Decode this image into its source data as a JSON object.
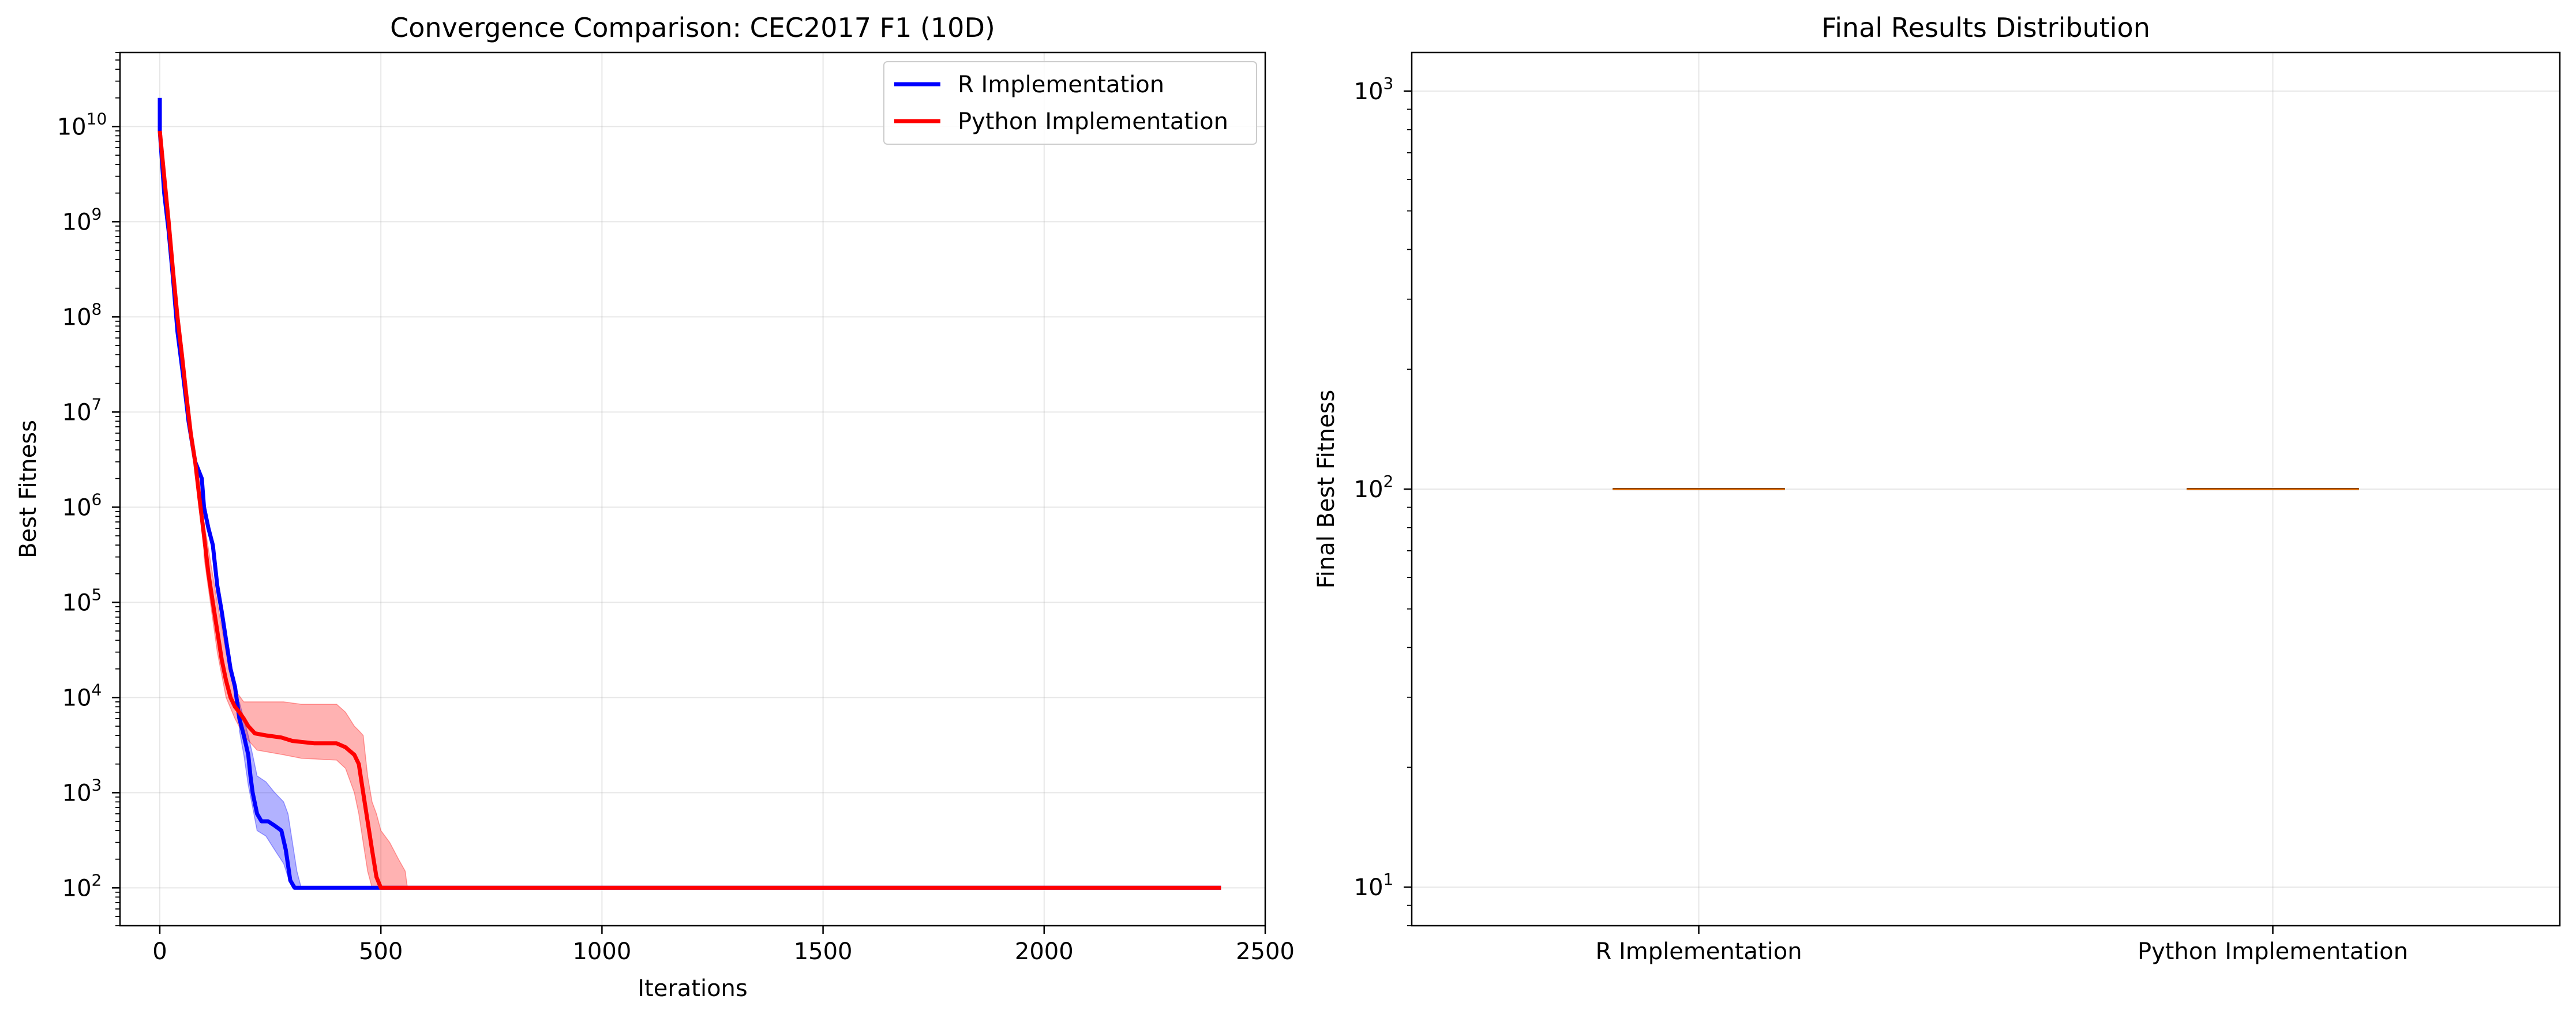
{
  "chart_data": [
    {
      "type": "line",
      "title": "Convergence Comparison: CEC2017 F1 (10D)",
      "xlabel": "Iterations",
      "ylabel": "Best Fitness",
      "xlim": [
        -90,
        2500
      ],
      "xticks": [
        0,
        500,
        1000,
        1500,
        2000,
        2500
      ],
      "ylim": [
        40,
        60000000000
      ],
      "yscale": "log",
      "yticks": [
        {
          "base": "10",
          "exp": "2"
        },
        {
          "base": "10",
          "exp": "3"
        },
        {
          "base": "10",
          "exp": "4"
        },
        {
          "base": "10",
          "exp": "5"
        },
        {
          "base": "10",
          "exp": "6"
        },
        {
          "base": "10",
          "exp": "7"
        },
        {
          "base": "10",
          "exp": "8"
        },
        {
          "base": "10",
          "exp": "9"
        },
        {
          "base": "10",
          "exp": "10"
        }
      ],
      "grid": true,
      "legend_position": "top-right",
      "series": [
        {
          "name": "R Implementation",
          "color": "#0000ff",
          "band_color": "#0000ff",
          "points": [
            [
              0,
              20000000000
            ],
            [
              0,
              9000000000
            ],
            [
              10,
              2000000000
            ],
            [
              20,
              800000000
            ],
            [
              30,
              250000000
            ],
            [
              40,
              70000000
            ],
            [
              55,
              20000000
            ],
            [
              65,
              8000000
            ],
            [
              80,
              3000000
            ],
            [
              95,
              2000000
            ],
            [
              100,
              1000000
            ],
            [
              110,
              600000
            ],
            [
              120,
              400000
            ],
            [
              130,
              150000
            ],
            [
              140,
              80000
            ],
            [
              150,
              40000
            ],
            [
              160,
              20000
            ],
            [
              170,
              13000
            ],
            [
              180,
              6000
            ],
            [
              190,
              4000
            ],
            [
              200,
              2500
            ],
            [
              205,
              1500
            ],
            [
              210,
              1000
            ],
            [
              220,
              600
            ],
            [
              230,
              500
            ],
            [
              245,
              500
            ],
            [
              260,
              450
            ],
            [
              275,
              400
            ],
            [
              285,
              250
            ],
            [
              295,
              120
            ],
            [
              305,
              100
            ],
            [
              2400,
              100
            ]
          ],
          "band_upper": [
            [
              180,
              9000
            ],
            [
              190,
              6000
            ],
            [
              200,
              4000
            ],
            [
              210,
              2500
            ],
            [
              220,
              1500
            ],
            [
              240,
              1300
            ],
            [
              260,
              1000
            ],
            [
              280,
              800
            ],
            [
              290,
              600
            ],
            [
              300,
              300
            ],
            [
              310,
              150
            ],
            [
              320,
              100
            ]
          ],
          "band_lower": [
            [
              180,
              4500
            ],
            [
              190,
              2500
            ],
            [
              200,
              1200
            ],
            [
              210,
              700
            ],
            [
              220,
              400
            ],
            [
              240,
              350
            ],
            [
              260,
              250
            ],
            [
              280,
              180
            ],
            [
              290,
              130
            ],
            [
              300,
              100
            ],
            [
              310,
              100
            ],
            [
              320,
              100
            ]
          ]
        },
        {
          "name": "Python Implementation",
          "color": "#ff0000",
          "band_color": "#ff0000",
          "points": [
            [
              0,
              9000000000
            ],
            [
              10,
              3000000000
            ],
            [
              20,
              1000000000
            ],
            [
              30,
              300000000
            ],
            [
              40,
              100000000
            ],
            [
              50,
              40000000
            ],
            [
              60,
              15000000
            ],
            [
              70,
              6000000
            ],
            [
              80,
              3000000
            ],
            [
              90,
              1200000
            ],
            [
              100,
              500000
            ],
            [
              110,
              200000
            ],
            [
              120,
              100000
            ],
            [
              130,
              50000
            ],
            [
              140,
              25000
            ],
            [
              150,
              15000
            ],
            [
              160,
              10000
            ],
            [
              170,
              8000
            ],
            [
              180,
              7000
            ],
            [
              190,
              6000
            ],
            [
              200,
              5000
            ],
            [
              215,
              4200
            ],
            [
              240,
              4000
            ],
            [
              275,
              3800
            ],
            [
              300,
              3500
            ],
            [
              350,
              3300
            ],
            [
              400,
              3300
            ],
            [
              420,
              3000
            ],
            [
              440,
              2500
            ],
            [
              450,
              2000
            ],
            [
              460,
              1000
            ],
            [
              470,
              500
            ],
            [
              480,
              250
            ],
            [
              490,
              130
            ],
            [
              500,
              100
            ],
            [
              2400,
              100
            ]
          ],
          "band_upper": [
            [
              100,
              700000
            ],
            [
              130,
              100000
            ],
            [
              150,
              30000
            ],
            [
              170,
              12000
            ],
            [
              190,
              9000
            ],
            [
              220,
              9000
            ],
            [
              280,
              9000
            ],
            [
              320,
              8500
            ],
            [
              400,
              8500
            ],
            [
              420,
              7000
            ],
            [
              440,
              5000
            ],
            [
              450,
              4500
            ],
            [
              460,
              4000
            ],
            [
              470,
              1500
            ],
            [
              480,
              800
            ],
            [
              490,
              600
            ],
            [
              500,
              400
            ],
            [
              520,
              300
            ],
            [
              540,
              200
            ],
            [
              555,
              150
            ],
            [
              560,
              100
            ]
          ],
          "band_lower": [
            [
              100,
              300000
            ],
            [
              130,
              30000
            ],
            [
              150,
              10000
            ],
            [
              170,
              6000
            ],
            [
              190,
              4000
            ],
            [
              220,
              2800
            ],
            [
              280,
              2500
            ],
            [
              320,
              2300
            ],
            [
              400,
              2200
            ],
            [
              420,
              1800
            ],
            [
              440,
              1000
            ],
            [
              450,
              600
            ],
            [
              460,
              300
            ],
            [
              470,
              150
            ],
            [
              480,
              100
            ],
            [
              490,
              100
            ],
            [
              500,
              100
            ],
            [
              520,
              100
            ],
            [
              540,
              100
            ],
            [
              555,
              100
            ],
            [
              560,
              100
            ]
          ]
        }
      ]
    },
    {
      "type": "box",
      "title": "Final Results Distribution",
      "xlabel": "",
      "ylabel": "Final Best Fitness",
      "yscale": "log",
      "ylim": [
        8,
        1250
      ],
      "yticks": [
        {
          "base": "10",
          "exp": "1"
        },
        {
          "base": "10",
          "exp": "2"
        },
        {
          "base": "10",
          "exp": "3"
        }
      ],
      "grid": true,
      "categories": [
        "R Implementation",
        "Python Implementation"
      ],
      "values": [
        100,
        100
      ],
      "median_color": "#ff7f0e"
    }
  ]
}
